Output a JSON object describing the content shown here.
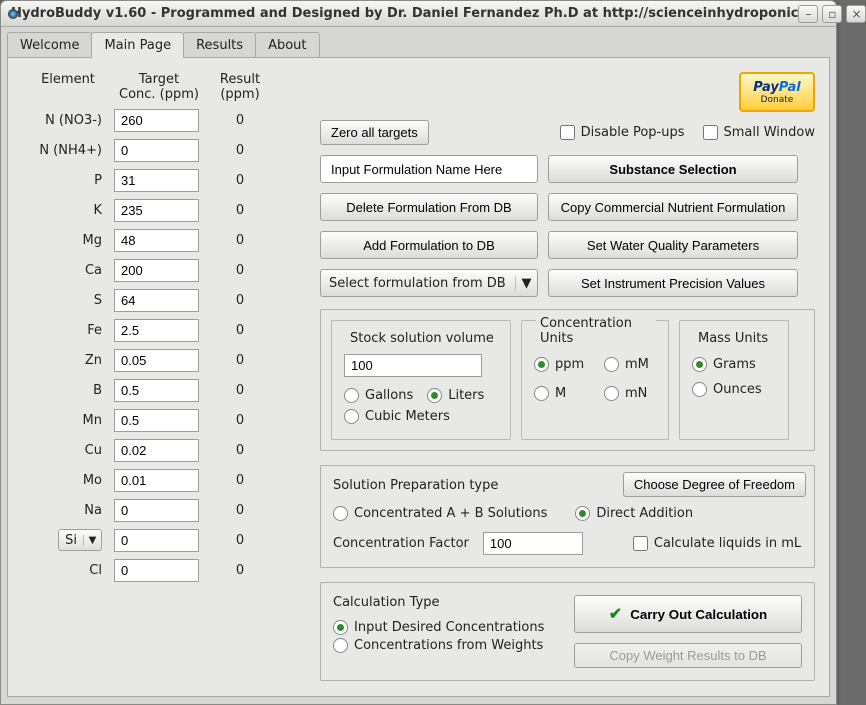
{
  "window": {
    "title": "HydroBuddy v1.60 - Programmed and Designed by Dr. Daniel Fernandez Ph.D at http://scienceinhydroponic"
  },
  "tabs": {
    "items": [
      "Welcome",
      "Main Page",
      "Results",
      "About"
    ],
    "active": 1
  },
  "paypal": {
    "brand": "PayPal",
    "action": "Donate"
  },
  "tableHeaders": {
    "element": "Element",
    "target": "Target Conc. (ppm)",
    "result": "Result (ppm)"
  },
  "elements": [
    {
      "label": "N (NO3-)",
      "target": "260",
      "result": "0"
    },
    {
      "label": "N (NH4+)",
      "target": "0",
      "result": "0"
    },
    {
      "label": "P",
      "target": "31",
      "result": "0"
    },
    {
      "label": "K",
      "target": "235",
      "result": "0"
    },
    {
      "label": "Mg",
      "target": "48",
      "result": "0"
    },
    {
      "label": "Ca",
      "target": "200",
      "result": "0"
    },
    {
      "label": "S",
      "target": "64",
      "result": "0"
    },
    {
      "label": "Fe",
      "target": "2.5",
      "result": "0"
    },
    {
      "label": "Zn",
      "target": "0.05",
      "result": "0"
    },
    {
      "label": "B",
      "target": "0.5",
      "result": "0"
    },
    {
      "label": "Mn",
      "target": "0.5",
      "result": "0"
    },
    {
      "label": "Cu",
      "target": "0.02",
      "result": "0"
    },
    {
      "label": "Mo",
      "target": "0.01",
      "result": "0"
    },
    {
      "label": "Na",
      "target": "0",
      "result": "0"
    },
    {
      "label": "Si",
      "target": "0",
      "result": "0",
      "dropdown": true
    },
    {
      "label": "Cl",
      "target": "0",
      "result": "0"
    }
  ],
  "rightTop": {
    "zeroTargets": "Zero all targets",
    "disablePopups": "Disable Pop-ups",
    "smallWindow": "Small Window"
  },
  "formulation": {
    "namePlaceholder": "Input Formulation Name Here",
    "substanceSelection": "Substance Selection",
    "deleteFromDB": "Delete Formulation From DB",
    "copyCommercial": "Copy Commercial Nutrient Formulation",
    "addToDB": "Add Formulation to DB",
    "waterQuality": "Set Water Quality Parameters",
    "selectFromDB": "Select formulation from DB",
    "instrumentPrecision": "Set Instrument Precision Values"
  },
  "stockVolume": {
    "title": "Stock solution volume",
    "value": "100",
    "gallons": "Gallons",
    "liters": "Liters",
    "cubicMeters": "Cubic Meters",
    "selected": "liters"
  },
  "concUnits": {
    "title": "Concentration Units",
    "ppm": "ppm",
    "mM": "mM",
    "M": "M",
    "mN": "mN",
    "selected": "ppm"
  },
  "massUnits": {
    "title": "Mass Units",
    "grams": "Grams",
    "ounces": "Ounces",
    "selected": "grams"
  },
  "solPrep": {
    "title": "Solution Preparation type",
    "chooseDoF": "Choose Degree of Freedom",
    "concAB": "Concentrated A + B Solutions",
    "direct": "Direct Addition",
    "selected": "direct",
    "concFactorLabel": "Concentration Factor",
    "concFactorValue": "100",
    "calcLiquidsML": "Calculate liquids in mL"
  },
  "calcType": {
    "title": "Calculation Type",
    "inputDesired": "Input Desired Concentrations",
    "fromWeights": "Concentrations from  Weights",
    "selected": "inputDesired",
    "carryOut": "Carry Out Calculation",
    "copyWeightResults": "Copy Weight Results to DB"
  }
}
